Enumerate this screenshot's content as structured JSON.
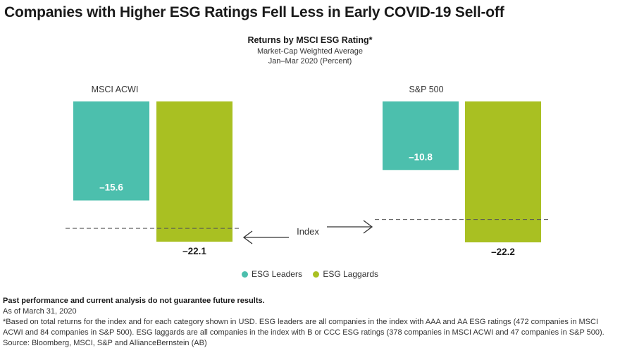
{
  "headline": "Companies with Higher ESG Ratings Fell Less in Early COVID-19 Sell-off",
  "chart_data": {
    "type": "bar",
    "title": "Returns by MSCI ESG Rating*",
    "subtitle_1": "Market-Cap Weighted Average",
    "subtitle_2": "Jan–Mar 2020 (Percent)",
    "categories": [
      "MSCI ACWI",
      "S&P 500"
    ],
    "series": [
      {
        "name": "ESG Leaders",
        "values": [
          -15.6,
          -10.8
        ],
        "labels": [
          "–15.6",
          "–10.8"
        ],
        "color": "#4cbfad"
      },
      {
        "name": "ESG Laggards",
        "values": [
          -22.1,
          -22.2
        ],
        "labels": [
          "–22.1",
          "–22.2"
        ],
        "color": "#a9c022"
      }
    ],
    "index": {
      "label": "Index",
      "values": [
        -20.0,
        -18.6
      ]
    },
    "ylim": [
      -22.2,
      0
    ]
  },
  "footer": {
    "disclaimer": "Past performance and current analysis do not guarantee future results.",
    "date": "As of March 31, 2020",
    "note": "*Based on total returns for the index and for each category shown in USD. ESG leaders are all companies in the index with AAA and AA ESG ratings (472 companies in MSCI ACWI and 84 companies in S&P 500). ESG laggards are all companies in the index with B or CCC ESG ratings (378 companies in MSCI ACWI and 47 companies in S&P 500).",
    "source": "Source: Bloomberg, MSCI, S&P and AllianceBernstein (AB)"
  }
}
